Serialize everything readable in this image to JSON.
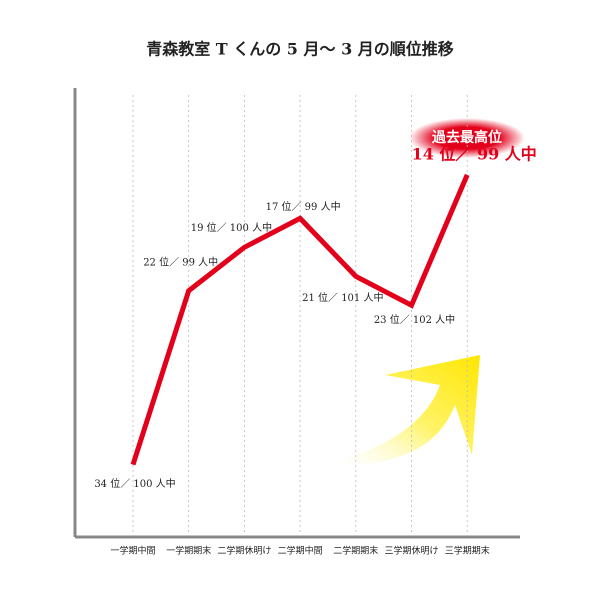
{
  "chart_data": {
    "type": "line",
    "title": "青森教室 T くんの 5 月〜 3 月の順位推移",
    "categories": [
      "一学期中間",
      "一学期期末",
      "二学期休明け",
      "二学期中間",
      "二学期期末",
      "三学期休明け",
      "三学期期末"
    ],
    "values": [
      34,
      22,
      19,
      17,
      21,
      23,
      14
    ],
    "value_labels": [
      "34 位／ 100 人中",
      "22 位／ 99 人中",
      "19 位／ 100 人中",
      "17 位／ 99 人中",
      "21 位／ 101 人中",
      "23 位／ 102 人中",
      "14 位／ 99 人中"
    ],
    "color": "#e3001b",
    "ylim": [
      39,
      8
    ],
    "annotation": "過去最高位"
  }
}
